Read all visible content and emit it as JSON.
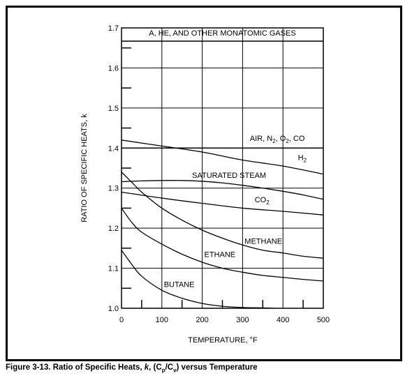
{
  "caption": {
    "prefix": "Figure 3-13. Ratio of Specific Heats, ",
    "k": "k",
    "mid": ", (C",
    "sub_p": "p",
    "slash": "/C",
    "sub_v": "v",
    "suffix": ") versus Temperature"
  },
  "chart_data": {
    "type": "line",
    "xlabel": "TEMPERATURE, °F",
    "ylabel": "RATIO OF SPECIFIC HEATS, k",
    "xlim": [
      0,
      500
    ],
    "ylim": [
      1.0,
      1.7
    ],
    "x_ticks": [
      "0",
      "100",
      "200",
      "300",
      "400",
      "500"
    ],
    "y_ticks": [
      "1.0",
      "1.1",
      "1.2",
      "1.3",
      "1.4",
      "1.5",
      "1.6",
      "1.7"
    ],
    "grid": true,
    "series": [
      {
        "name": "A, HE, AND OTHER MONATOMIC GASES",
        "x": [
          0,
          500
        ],
        "y": [
          1.667,
          1.667
        ]
      },
      {
        "name": "AIR, N2, O2, CO",
        "x": [
          0,
          500
        ],
        "y": [
          1.4,
          1.4
        ]
      },
      {
        "name": "H2",
        "x": [
          0,
          100,
          200,
          300,
          400,
          500
        ],
        "y": [
          1.42,
          1.405,
          1.39,
          1.37,
          1.355,
          1.335
        ]
      },
      {
        "name": "SATURATED STEAM",
        "x": [
          0,
          50,
          100,
          150,
          200,
          250,
          300,
          350,
          400,
          450,
          500
        ],
        "y": [
          1.316,
          1.318,
          1.319,
          1.319,
          1.317,
          1.313,
          1.307,
          1.3,
          1.292,
          1.283,
          1.272
        ]
      },
      {
        "name": "CO2",
        "x": [
          0,
          100,
          200,
          300,
          400,
          500
        ],
        "y": [
          1.29,
          1.275,
          1.262,
          1.25,
          1.242,
          1.233
        ]
      },
      {
        "name": "METHANE",
        "x": [
          0,
          25,
          50,
          100,
          150,
          200,
          250,
          300,
          350,
          400,
          450,
          500
        ],
        "y": [
          1.34,
          1.315,
          1.29,
          1.25,
          1.22,
          1.195,
          1.175,
          1.158,
          1.145,
          1.138,
          1.13,
          1.125
        ]
      },
      {
        "name": "ETHANE",
        "x": [
          0,
          25,
          50,
          100,
          150,
          200,
          250,
          300,
          350,
          400,
          450,
          500
        ],
        "y": [
          1.25,
          1.215,
          1.19,
          1.16,
          1.135,
          1.115,
          1.1,
          1.09,
          1.082,
          1.077,
          1.072,
          1.068
        ]
      },
      {
        "name": "BUTANE",
        "x": [
          0,
          25,
          50,
          100,
          150,
          200,
          250,
          300,
          350,
          375
        ],
        "y": [
          1.145,
          1.11,
          1.08,
          1.045,
          1.025,
          1.012,
          1.005,
          1.002,
          1.001,
          1.0
        ]
      }
    ],
    "series_labels": [
      {
        "text": "A, HE, AND OTHER MONATOMIC GASES",
        "x": 250,
        "y": 1.681,
        "anchor": "middle"
      },
      {
        "text": "AIR, N",
        "sub1": "2",
        "mid": ", O",
        "sub2": "2",
        "end": ", CO",
        "x": 318,
        "y": 1.418,
        "anchor": "start"
      },
      {
        "text": "H",
        "sub1": "2",
        "x": 437,
        "y": 1.37,
        "anchor": "start"
      },
      {
        "text": "SATURATED STEAM",
        "x": 175,
        "y": 1.326,
        "anchor": "start"
      },
      {
        "text": "CO",
        "sub1": "2",
        "x": 330,
        "y": 1.265,
        "anchor": "start"
      },
      {
        "text": "METHANE",
        "x": 305,
        "y": 1.161,
        "anchor": "start"
      },
      {
        "text": "ETHANE",
        "x": 205,
        "y": 1.128,
        "anchor": "start"
      },
      {
        "text": "BUTANE",
        "x": 105,
        "y": 1.053,
        "anchor": "start"
      }
    ]
  }
}
